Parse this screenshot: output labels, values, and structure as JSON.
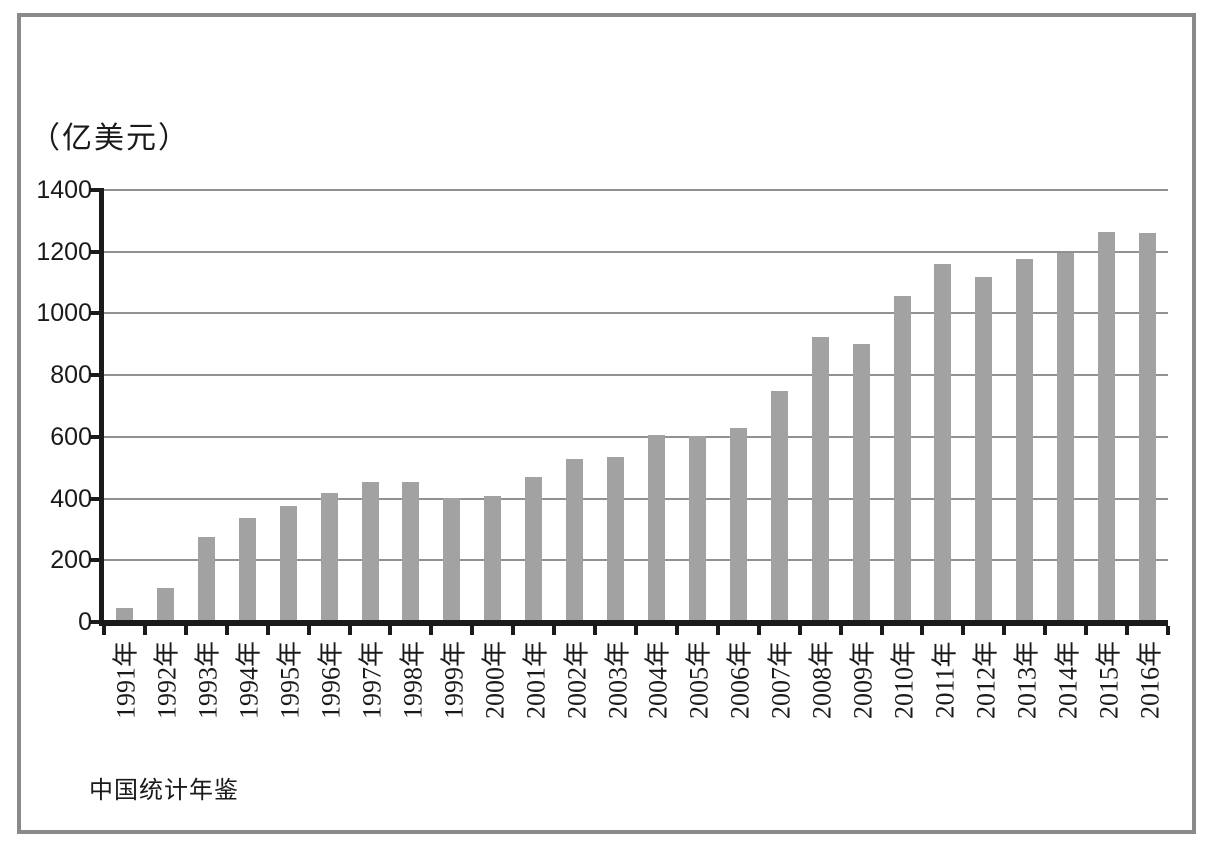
{
  "chart_data": {
    "type": "bar",
    "title": "",
    "ylabel": "（亿美元）",
    "xlabel": "",
    "source": "中国统计年鉴",
    "categories": [
      "1991年",
      "1992年",
      "1993年",
      "1994年",
      "1995年",
      "1996年",
      "1997年",
      "1998年",
      "1999年",
      "2000年",
      "2001年",
      "2002年",
      "2003年",
      "2004年",
      "2005年",
      "2006年",
      "2007年",
      "2008年",
      "2009年",
      "2010年",
      "2011年",
      "2012年",
      "2013年",
      "2014年",
      "2015年",
      "2016年"
    ],
    "values": [
      44,
      110,
      275,
      338,
      375,
      417,
      453,
      455,
      403,
      407,
      469,
      527,
      535,
      606,
      603,
      630,
      748,
      924,
      900,
      1057,
      1160,
      1117,
      1176,
      1196,
      1263,
      1260
    ],
    "y_ticks": [
      0,
      200,
      400,
      600,
      800,
      1000,
      1200,
      1400
    ],
    "ylim": [
      0,
      1400
    ],
    "grid": true,
    "legend": "none",
    "x_label_rotation_deg": -90,
    "bar_color": "#a2a2a2",
    "gridline_color": "#919191",
    "axis_color": "#1b1b1b",
    "text_color": "#1a1a1a",
    "frame_border_color": "#8a8a8a"
  }
}
